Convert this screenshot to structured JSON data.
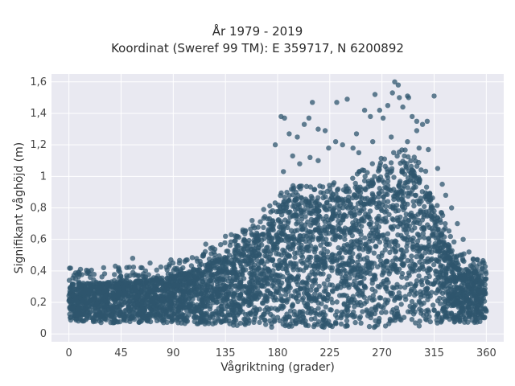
{
  "chart_data": {
    "type": "scatter",
    "title": "År 1979 - 2019",
    "subtitle": "Koordinat (Sweref 99 TM): E 359717, N 6200892",
    "xlabel": "Vågriktning (grader)",
    "ylabel": "Signifikant våghöjd (m)",
    "xlim": [
      -15,
      375
    ],
    "ylim": [
      -0.05,
      1.65
    ],
    "x_ticks": [
      0,
      45,
      90,
      135,
      180,
      225,
      270,
      315,
      360
    ],
    "y_ticks": [
      0,
      0.2,
      0.4,
      0.6,
      0.8,
      1,
      1.2,
      1.4,
      1.6
    ],
    "y_tick_labels": [
      "0",
      "0,2",
      "0,4",
      "0,6",
      "0,8",
      "1",
      "1,2",
      "1,4",
      "1,6"
    ],
    "grid": true,
    "marker_color": "#2f566e",
    "background_color": "#e9e9f1",
    "envelope": {
      "direction": [
        0,
        15,
        30,
        45,
        60,
        75,
        90,
        105,
        120,
        135,
        150,
        165,
        175,
        185,
        195,
        210,
        225,
        240,
        255,
        270,
        280,
        290,
        300,
        310,
        320,
        330,
        340,
        350,
        360
      ],
      "dense_top": [
        0.33,
        0.32,
        0.33,
        0.34,
        0.34,
        0.35,
        0.37,
        0.4,
        0.45,
        0.5,
        0.56,
        0.64,
        0.74,
        0.84,
        0.86,
        0.86,
        0.88,
        0.92,
        0.96,
        1.03,
        1.08,
        1.09,
        1.02,
        0.92,
        0.72,
        0.52,
        0.42,
        0.4,
        0.4
      ],
      "dense_bottom": [
        0.08,
        0.08,
        0.07,
        0.07,
        0.07,
        0.07,
        0.07,
        0.06,
        0.06,
        0.05,
        0.05,
        0.04,
        0.04,
        0.04,
        0.04,
        0.04,
        0.04,
        0.04,
        0.04,
        0.04,
        0.04,
        0.04,
        0.05,
        0.05,
        0.06,
        0.07,
        0.07,
        0.07,
        0.08
      ]
    },
    "outliers": [
      [
        183,
        1.38
      ],
      [
        186,
        1.37
      ],
      [
        203,
        1.33
      ],
      [
        207,
        1.37
      ],
      [
        210,
        1.47
      ],
      [
        215,
        1.3
      ],
      [
        231,
        1.47
      ],
      [
        240,
        1.49
      ],
      [
        264,
        1.52
      ],
      [
        279,
        1.53
      ],
      [
        281,
        1.6
      ],
      [
        284,
        1.58
      ],
      [
        285,
        1.5
      ],
      [
        292,
        1.51
      ],
      [
        293,
        1.5
      ],
      [
        315,
        1.51
      ],
      [
        255,
        1.42
      ],
      [
        260,
        1.38
      ],
      [
        275,
        1.45
      ],
      [
        288,
        1.44
      ],
      [
        296,
        1.38
      ],
      [
        300,
        1.35
      ],
      [
        305,
        1.33
      ],
      [
        178,
        1.2
      ],
      [
        190,
        1.27
      ],
      [
        197,
        1.25
      ],
      [
        221,
        1.29
      ],
      [
        230,
        1.22
      ],
      [
        248,
        1.27
      ],
      [
        268,
        1.42
      ],
      [
        271,
        1.37
      ],
      [
        300,
        1.29
      ],
      [
        309,
        1.35
      ],
      [
        185,
        1.03
      ],
      [
        193,
        1.13
      ],
      [
        199,
        1.08
      ],
      [
        208,
        1.12
      ],
      [
        224,
        1.18
      ],
      [
        236,
        1.2
      ],
      [
        245,
        1.18
      ],
      [
        262,
        1.22
      ],
      [
        292,
        1.22
      ],
      [
        310,
        1.17
      ],
      [
        318,
        1.05
      ],
      [
        322,
        0.95
      ],
      [
        325,
        0.88
      ],
      [
        330,
        0.8
      ],
      [
        335,
        0.7
      ],
      [
        340,
        0.6
      ],
      [
        345,
        0.52
      ],
      [
        118,
        0.57
      ],
      [
        125,
        0.52
      ],
      [
        135,
        0.62
      ],
      [
        140,
        0.63
      ],
      [
        150,
        0.66
      ],
      [
        158,
        0.72
      ],
      [
        168,
        0.79
      ],
      [
        30,
        0.42
      ],
      [
        40,
        0.43
      ],
      [
        55,
        0.48
      ],
      [
        70,
        0.45
      ],
      [
        88,
        0.47
      ],
      [
        100,
        0.46
      ],
      [
        10,
        0.41
      ],
      [
        352,
        0.47
      ],
      [
        358,
        0.45
      ],
      [
        215,
        1.1
      ],
      [
        250,
        1.15
      ],
      [
        278,
        1.25
      ],
      [
        302,
        1.18
      ]
    ]
  }
}
